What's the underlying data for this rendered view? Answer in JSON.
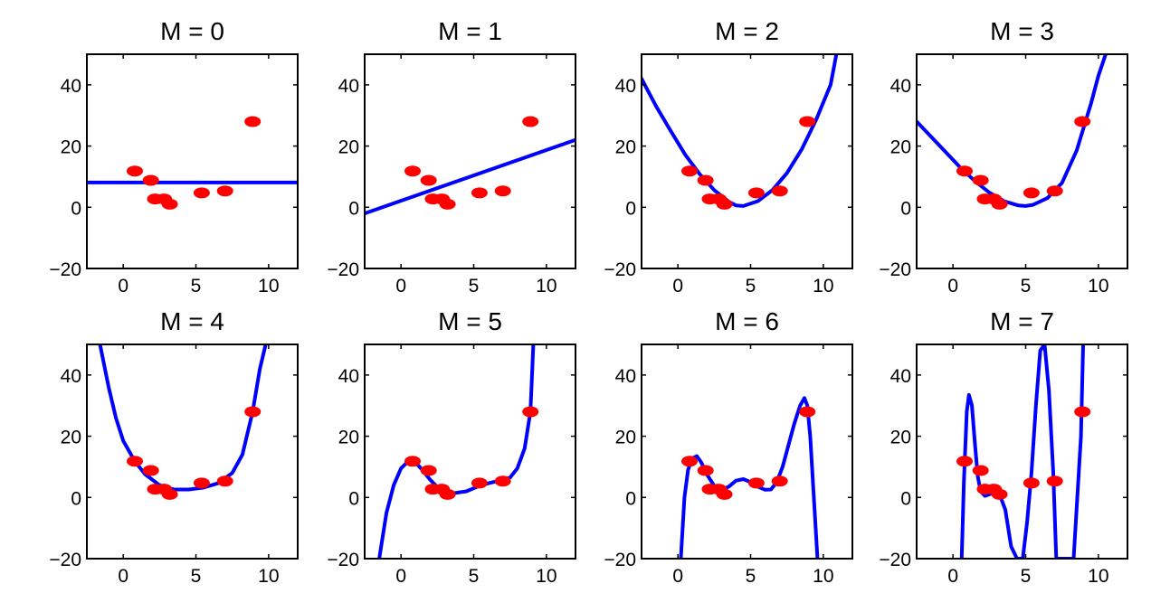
{
  "chart_data": [
    {
      "type": "line",
      "title": "M = 0",
      "xlim": [
        -2.5,
        12
      ],
      "ylim": [
        -20,
        50
      ],
      "xticks": [
        0,
        5,
        10
      ],
      "yticks": [
        -20,
        0,
        20,
        40
      ],
      "tick_labels_x": [
        "0",
        "5",
        "10"
      ],
      "tick_labels_y": [
        "−20",
        "0",
        "20",
        "40"
      ],
      "grid": false,
      "points": {
        "x": [
          0.8,
          1.9,
          2.2,
          2.8,
          3.2,
          5.4,
          7.0,
          8.9
        ],
        "y": [
          11.8,
          8.8,
          2.7,
          2.7,
          1.0,
          4.7,
          5.3,
          28.0
        ]
      },
      "curve": {
        "x": [
          -2.5,
          12
        ],
        "y": [
          8.1,
          8.1
        ]
      }
    },
    {
      "type": "line",
      "title": "M = 1",
      "xlim": [
        -2.5,
        12
      ],
      "ylim": [
        -20,
        50
      ],
      "xticks": [
        0,
        5,
        10
      ],
      "yticks": [
        -20,
        0,
        20,
        40
      ],
      "tick_labels_x": [
        "0",
        "5",
        "10"
      ],
      "tick_labels_y": [
        "−20",
        "0",
        "20",
        "40"
      ],
      "grid": false,
      "points": {
        "x": [
          0.8,
          1.9,
          2.2,
          2.8,
          3.2,
          5.4,
          7.0,
          8.9
        ],
        "y": [
          11.8,
          8.8,
          2.7,
          2.7,
          1.0,
          4.7,
          5.3,
          28.0
        ]
      },
      "curve": {
        "x": [
          -2.5,
          12
        ],
        "y": [
          -2.0,
          22.0
        ]
      }
    },
    {
      "type": "line",
      "title": "M = 2",
      "xlim": [
        -2.5,
        12
      ],
      "ylim": [
        -20,
        50
      ],
      "xticks": [
        0,
        5,
        10
      ],
      "yticks": [
        -20,
        0,
        20,
        40
      ],
      "tick_labels_x": [
        "0",
        "5",
        "10"
      ],
      "tick_labels_y": [
        "−20",
        "0",
        "20",
        "40"
      ],
      "grid": false,
      "points": {
        "x": [
          0.8,
          1.9,
          2.2,
          2.8,
          3.2,
          5.4,
          7.0,
          8.9
        ],
        "y": [
          11.8,
          8.8,
          2.7,
          2.7,
          1.0,
          4.7,
          5.3,
          28.0
        ]
      },
      "curve": {
        "x": [
          -2.5,
          -1.5,
          -0.5,
          0.5,
          1.5,
          2.5,
          3.5,
          4.0,
          4.5,
          5.5,
          6.5,
          7.5,
          8.5,
          9.5,
          10.5,
          10.9
        ],
        "y": [
          42.0,
          33.0,
          25.0,
          17.2,
          10.8,
          5.6,
          1.8,
          0.6,
          0.4,
          2.0,
          5.6,
          11.2,
          18.8,
          28.5,
          40.0,
          50.0
        ]
      }
    },
    {
      "type": "line",
      "title": "M = 3",
      "xlim": [
        -2.5,
        12
      ],
      "ylim": [
        -20,
        50
      ],
      "xticks": [
        0,
        5,
        10
      ],
      "yticks": [
        -20,
        0,
        20,
        40
      ],
      "tick_labels_x": [
        "0",
        "5",
        "10"
      ],
      "tick_labels_y": [
        "−20",
        "0",
        "20",
        "40"
      ],
      "grid": false,
      "points": {
        "x": [
          0.8,
          1.9,
          2.2,
          2.8,
          3.2,
          5.4,
          7.0,
          8.9
        ],
        "y": [
          11.8,
          8.8,
          2.7,
          2.7,
          1.0,
          4.7,
          5.3,
          28.0
        ]
      },
      "curve": {
        "x": [
          -2.5,
          -1.5,
          -0.5,
          0.5,
          1.5,
          2.5,
          3.5,
          4.5,
          5.0,
          5.5,
          6.5,
          7.5,
          8.5,
          9.5,
          10.0,
          10.5
        ],
        "y": [
          28.0,
          23.0,
          18.0,
          13.0,
          8.6,
          4.8,
          2.0,
          0.6,
          0.4,
          0.8,
          3.0,
          8.0,
          18.5,
          34.0,
          43.0,
          50.0
        ]
      }
    },
    {
      "type": "line",
      "title": "M = 4",
      "xlim": [
        -2.5,
        12
      ],
      "ylim": [
        -20,
        50
      ],
      "xticks": [
        0,
        5,
        10
      ],
      "yticks": [
        -20,
        0,
        20,
        40
      ],
      "tick_labels_x": [
        "0",
        "5",
        "10"
      ],
      "tick_labels_y": [
        "−20",
        "0",
        "20",
        "40"
      ],
      "grid": false,
      "points": {
        "x": [
          0.8,
          1.9,
          2.2,
          2.8,
          3.2,
          5.4,
          7.0,
          8.9
        ],
        "y": [
          11.8,
          8.8,
          2.7,
          2.7,
          1.0,
          4.7,
          5.3,
          28.0
        ]
      },
      "curve": {
        "x": [
          -1.6,
          -1.0,
          -0.5,
          0.0,
          0.8,
          1.5,
          2.5,
          3.5,
          4.5,
          5.5,
          6.5,
          7.5,
          8.2,
          8.9,
          9.4,
          9.8
        ],
        "y": [
          50.0,
          36.0,
          26.0,
          18.5,
          11.8,
          7.6,
          4.0,
          2.6,
          2.6,
          3.2,
          4.6,
          8.0,
          14.0,
          28.0,
          42.0,
          50.0
        ]
      }
    },
    {
      "type": "line",
      "title": "M = 5",
      "xlim": [
        -2.5,
        12
      ],
      "ylim": [
        -20,
        50
      ],
      "xticks": [
        0,
        5,
        10
      ],
      "yticks": [
        -20,
        0,
        20,
        40
      ],
      "tick_labels_x": [
        "0",
        "5",
        "10"
      ],
      "tick_labels_y": [
        "−20",
        "0",
        "20",
        "40"
      ],
      "grid": false,
      "points": {
        "x": [
          0.8,
          1.9,
          2.2,
          2.8,
          3.2,
          5.4,
          7.0,
          8.9
        ],
        "y": [
          11.8,
          8.8,
          2.7,
          2.7,
          1.0,
          4.7,
          5.3,
          28.0
        ]
      },
      "curve": {
        "x": [
          -1.5,
          -1.0,
          -0.5,
          0.0,
          0.5,
          1.0,
          1.5,
          2.0,
          2.5,
          3.0,
          3.5,
          4.5,
          5.5,
          6.5,
          7.5,
          8.0,
          8.5,
          8.9,
          9.1
        ],
        "y": [
          -20.0,
          -5.0,
          4.0,
          9.5,
          11.8,
          11.5,
          8.8,
          5.8,
          3.4,
          1.8,
          1.3,
          2.0,
          4.0,
          5.2,
          6.5,
          9.5,
          16.0,
          28.0,
          50.0
        ]
      }
    },
    {
      "type": "line",
      "title": "M = 6",
      "xlim": [
        -2.5,
        12
      ],
      "ylim": [
        -20,
        50
      ],
      "xticks": [
        0,
        5,
        10
      ],
      "yticks": [
        -20,
        0,
        20,
        40
      ],
      "tick_labels_x": [
        "0",
        "5",
        "10"
      ],
      "tick_labels_y": [
        "−20",
        "0",
        "20",
        "40"
      ],
      "grid": false,
      "points": {
        "x": [
          0.8,
          1.9,
          2.2,
          2.8,
          3.2,
          5.4,
          7.0,
          8.9
        ],
        "y": [
          11.8,
          8.8,
          2.7,
          2.7,
          1.0,
          4.7,
          5.3,
          28.0
        ]
      },
      "curve": {
        "x": [
          0.2,
          0.45,
          0.7,
          1.0,
          1.3,
          1.6,
          2.0,
          2.5,
          3.0,
          3.5,
          4.0,
          4.5,
          5.0,
          5.5,
          6.0,
          6.4,
          6.8,
          7.2,
          7.6,
          8.0,
          8.4,
          8.7,
          8.9,
          9.1,
          9.35,
          9.6
        ],
        "y": [
          -20.0,
          0.0,
          9.0,
          12.8,
          13.5,
          11.5,
          7.5,
          3.8,
          2.5,
          3.5,
          5.5,
          6.0,
          5.0,
          3.5,
          2.5,
          2.6,
          5.0,
          10.0,
          17.0,
          24.0,
          30.0,
          32.5,
          30.0,
          20.0,
          0.0,
          -20.0
        ]
      }
    },
    {
      "type": "line",
      "title": "M = 7",
      "xlim": [
        -2.5,
        12
      ],
      "ylim": [
        -20,
        50
      ],
      "xticks": [
        0,
        5,
        10
      ],
      "yticks": [
        -20,
        0,
        20,
        40
      ],
      "tick_labels_x": [
        "0",
        "5",
        "10"
      ],
      "tick_labels_y": [
        "−20",
        "0",
        "20",
        "40"
      ],
      "grid": false,
      "points": {
        "x": [
          0.8,
          1.9,
          2.2,
          2.8,
          3.2,
          5.4,
          7.0,
          8.9
        ],
        "y": [
          11.8,
          8.8,
          2.7,
          2.7,
          1.0,
          4.7,
          5.3,
          28.0
        ]
      },
      "curve": {
        "x": [
          0.6,
          0.75,
          0.95,
          1.1,
          1.3,
          1.5,
          1.7,
          1.9,
          2.2,
          2.5,
          2.8,
          3.2,
          3.6,
          4.0,
          4.4,
          4.8,
          5.1,
          5.4,
          5.7,
          6.0,
          6.3,
          6.6,
          6.9,
          7.1,
          7.3,
          7.8,
          8.3,
          8.8,
          8.95
        ],
        "y": [
          -20.0,
          5.0,
          28.0,
          33.5,
          30.0,
          18.0,
          7.0,
          2.0,
          0.5,
          1.0,
          1.5,
          1.0,
          -4.0,
          -16.0,
          -20.0,
          -20.0,
          -8.0,
          8.0,
          30.0,
          48.0,
          50.0,
          35.0,
          8.0,
          -20.0,
          -20.0,
          -20.0,
          -20.0,
          20.0,
          50.0
        ]
      }
    }
  ],
  "colors": {
    "points": "#ff0000",
    "curve": "#0000ff",
    "axes": "#000000"
  }
}
